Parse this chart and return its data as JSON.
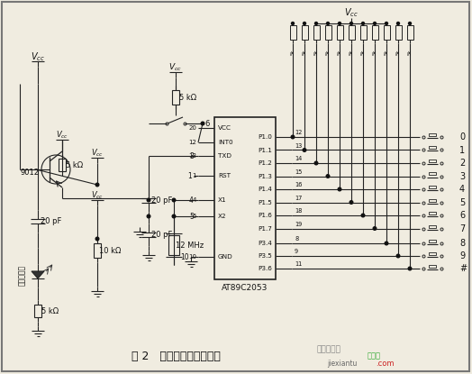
{
  "title": "图 2   发射模块电路原理图",
  "bg_color": "#f0ece0",
  "border_color": "#777777",
  "text_color": "#000000",
  "watermark1": "电子发烧友",
  "watermark2": "捷线图",
  "watermark3": "jiexiantu",
  "watermark4": ".com",
  "chip_label": "AT89C2053",
  "chip_ports_left": [
    "VCC",
    "INT0",
    "TXD",
    "RST",
    "X1",
    "X2",
    "GND"
  ],
  "chip_ports_right": [
    "P1.0",
    "P1.1",
    "P1.2",
    "P1.3",
    "P1.4",
    "P1.5",
    "P1.6",
    "P1.7",
    "P3.4",
    "P3.5",
    "P3.6"
  ],
  "left_pin_nums": [
    "20",
    "12",
    "13",
    "1",
    "4",
    "5",
    "10"
  ],
  "right_pin_nums": [
    "12",
    "13",
    "14",
    "15",
    "16",
    "17",
    "18",
    "19",
    "8",
    "9",
    "11"
  ],
  "key_labels": [
    "0",
    "1",
    "2",
    "3",
    "4",
    "5",
    "6",
    "7",
    "8",
    "9",
    "#"
  ],
  "transistor_label": "9012",
  "ir_label": "红外发射管",
  "vcc_top_right_label": "Vcc",
  "num_resistors": 11
}
